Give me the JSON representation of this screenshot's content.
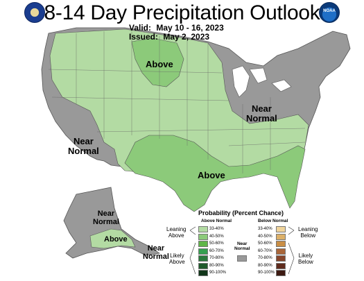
{
  "header": {
    "title": "8-14 Day Precipitation Outlook",
    "valid_label": "Valid:",
    "valid_value": "May 10 - 16, 2023",
    "issued_label": "Issued:",
    "issued_value": "May 2, 2023"
  },
  "logos": {
    "left": "doc-seal-icon",
    "right": "noaa-logo-icon",
    "right_text": "NOAA"
  },
  "map_labels": {
    "above_north": "Above",
    "near_normal_east_1": "Near",
    "near_normal_east_2": "Normal",
    "near_normal_west_1": "Near",
    "near_normal_west_2": "Normal",
    "above_south": "Above",
    "ak_near_1": "Near",
    "ak_near_2": "Normal",
    "ak_above": "Above",
    "ak_se_near_1": "Near",
    "ak_se_near_2": "Normal"
  },
  "colors": {
    "ocean_bg": "#ffffff",
    "near_normal": "#999999",
    "above_33_40": "#b3dba3",
    "above_40_50": "#8cca7a",
    "above_50_60": "#5fb548"
  },
  "legend": {
    "title": "Probability (Percent Chance)",
    "above_header": "Above Normal",
    "below_header": "Below Normal",
    "leaning_above_1": "Leaning",
    "leaning_above_2": "Above",
    "likely_above_1": "Likely",
    "likely_above_2": "Above",
    "near_normal_1": "Near",
    "near_normal_2": "Normal",
    "leaning_below_1": "Leaning",
    "leaning_below_2": "Below",
    "likely_below_1": "Likely",
    "likely_below_2": "Below",
    "above": [
      {
        "range": "33-40%",
        "color": "#b3dba3"
      },
      {
        "range": "40-50%",
        "color": "#8cca7a"
      },
      {
        "range": "50-60%",
        "color": "#5fb548"
      },
      {
        "range": "60-70%",
        "color": "#35a050"
      },
      {
        "range": "70-80%",
        "color": "#2a7a3c"
      },
      {
        "range": "80-90%",
        "color": "#1f5a2c"
      },
      {
        "range": "90-100%",
        "color": "#11361a"
      }
    ],
    "near_color": "#999999",
    "below": [
      {
        "range": "33-40%",
        "color": "#f0d49b"
      },
      {
        "range": "40-50%",
        "color": "#dcb068"
      },
      {
        "range": "50-60%",
        "color": "#c98e45"
      },
      {
        "range": "60-70%",
        "color": "#a9663a"
      },
      {
        "range": "70-80%",
        "color": "#86452b"
      },
      {
        "range": "80-90%",
        "color": "#5f2b1d"
      },
      {
        "range": "90-100%",
        "color": "#3d1a12"
      }
    ]
  }
}
